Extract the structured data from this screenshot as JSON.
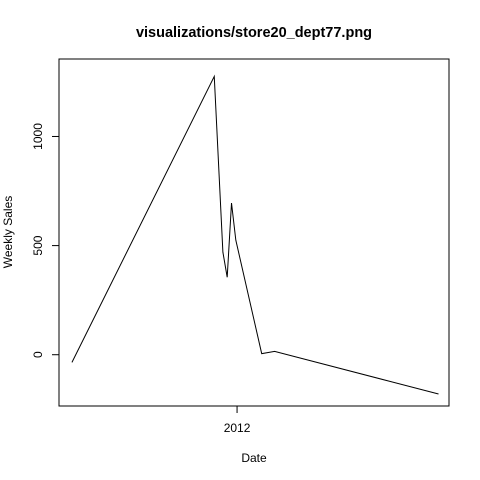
{
  "chart_data": {
    "type": "line",
    "title": "visualizations/store20_dept77.png",
    "xlabel": "Date",
    "ylabel": "Weekly Sales",
    "x_ticks": [
      {
        "label": "2012",
        "value": "2012-01-01"
      }
    ],
    "y_ticks": [
      0,
      500,
      1000
    ],
    "xlim": [
      "2011-03-18",
      "2012-12-10"
    ],
    "ylim": [
      -235,
      1355
    ],
    "grid": false,
    "legend": "none",
    "series": [
      {
        "x": [
          "2011-04-08",
          "2011-11-25",
          "2011-12-09",
          "2011-12-16",
          "2011-12-23",
          "2011-12-30",
          "2012-02-10",
          "2012-03-02",
          "2012-11-23"
        ],
        "y": [
          -35,
          1275,
          470,
          355,
          695,
          525,
          5,
          15,
          -180
        ]
      }
    ],
    "line_color": "#000000"
  }
}
